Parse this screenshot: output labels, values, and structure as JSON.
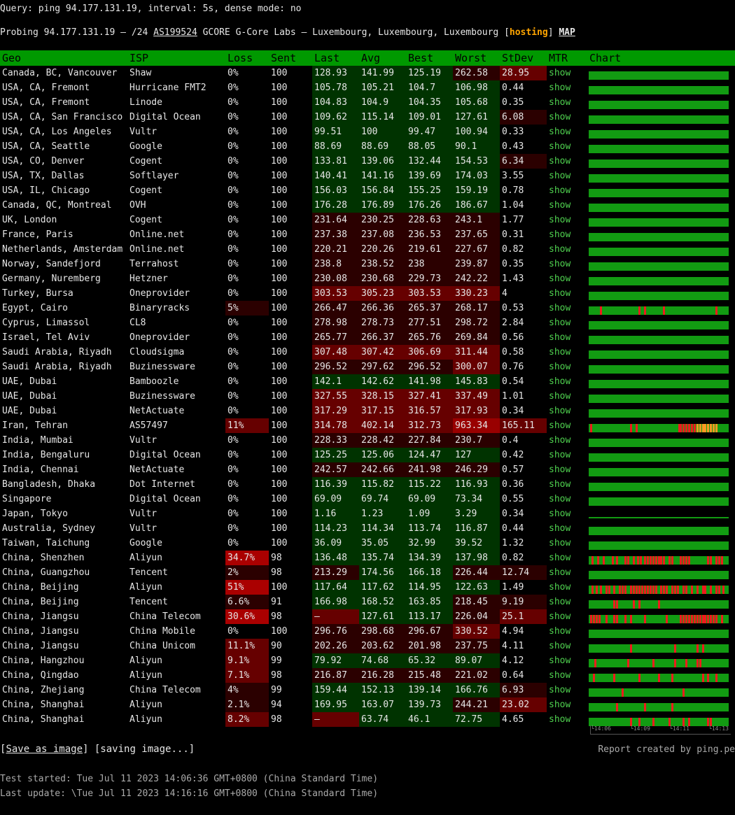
{
  "query": "Query: ping 94.177.131.19, interval: 5s, dense mode: no",
  "probe": {
    "prefix": "Probing 94.177.131.19 – /24 ",
    "asn": "AS199524",
    "desc": " GCORE G-Core Labs – Luxembourg, Luxembourg, Luxembourg [",
    "tag": "hosting",
    "tag_close": "] ",
    "map": "MAP"
  },
  "columns": [
    "Geo",
    "ISP",
    "Loss",
    "Sent",
    "Last",
    "Avg",
    "Best",
    "Worst",
    "StDev",
    "MTR",
    "Chart"
  ],
  "mtr_label": "show",
  "colors": {
    "header": "#009900",
    "good": "#003300",
    "mid": "#2b0000",
    "bad": "#660000",
    "worse": "#990000",
    "chart": "#129b12",
    "spike": "#ee1c1c"
  },
  "rows": [
    [
      "Canada, BC, Vancouver",
      "Shaw",
      "0%",
      "100",
      "128.93",
      "141.99",
      "125.19",
      "262.58",
      "28.95"
    ],
    [
      "USA, CA, Fremont",
      "Hurricane FMT2",
      "0%",
      "100",
      "105.78",
      "105.21",
      "104.7",
      "106.98",
      "0.44"
    ],
    [
      "USA, CA, Fremont",
      "Linode",
      "0%",
      "100",
      "104.83",
      "104.9",
      "104.35",
      "105.68",
      "0.35"
    ],
    [
      "USA, CA, San Francisco",
      "Digital Ocean",
      "0%",
      "100",
      "109.62",
      "115.14",
      "109.01",
      "127.61",
      "6.08"
    ],
    [
      "USA, CA, Los Angeles",
      "Vultr",
      "0%",
      "100",
      "99.51",
      "100",
      "99.47",
      "100.94",
      "0.33"
    ],
    [
      "USA, CA, Seattle",
      "Google",
      "0%",
      "100",
      "88.69",
      "88.69",
      "88.05",
      "90.1",
      "0.43"
    ],
    [
      "USA, CO, Denver",
      "Cogent",
      "0%",
      "100",
      "133.81",
      "139.06",
      "132.44",
      "154.53",
      "6.34"
    ],
    [
      "USA, TX, Dallas",
      "Softlayer",
      "0%",
      "100",
      "140.41",
      "141.16",
      "139.69",
      "174.03",
      "3.55"
    ],
    [
      "USA, IL, Chicago",
      "Cogent",
      "0%",
      "100",
      "156.03",
      "156.84",
      "155.25",
      "159.19",
      "0.78"
    ],
    [
      "Canada, QC, Montreal",
      "OVH",
      "0%",
      "100",
      "176.28",
      "176.89",
      "176.26",
      "186.67",
      "1.04"
    ],
    [
      "UK, London",
      "Cogent",
      "0%",
      "100",
      "231.64",
      "230.25",
      "228.63",
      "243.1",
      "1.77"
    ],
    [
      "France, Paris",
      "Online.net",
      "0%",
      "100",
      "237.38",
      "237.08",
      "236.53",
      "237.65",
      "0.31"
    ],
    [
      "Netherlands, Amsterdam",
      "Online.net",
      "0%",
      "100",
      "220.21",
      "220.26",
      "219.61",
      "227.67",
      "0.82"
    ],
    [
      "Norway, Sandefjord",
      "Terrahost",
      "0%",
      "100",
      "238.8",
      "238.52",
      "238",
      "239.87",
      "0.35"
    ],
    [
      "Germany, Nuremberg",
      "Hetzner",
      "0%",
      "100",
      "230.08",
      "230.68",
      "229.73",
      "242.22",
      "1.43"
    ],
    [
      "Turkey, Bursa",
      "Oneprovider",
      "0%",
      "100",
      "303.53",
      "305.23",
      "303.53",
      "330.23",
      "4"
    ],
    [
      "Egypt, Cairo",
      "Binaryracks",
      "5%",
      "100",
      "266.47",
      "266.36",
      "265.37",
      "268.17",
      "0.53"
    ],
    [
      "Cyprus, Limassol",
      "CL8",
      "0%",
      "100",
      "278.98",
      "278.73",
      "277.51",
      "298.72",
      "2.84"
    ],
    [
      "Israel, Tel Aviv",
      "Oneprovider",
      "0%",
      "100",
      "265.77",
      "266.37",
      "265.76",
      "269.84",
      "0.56"
    ],
    [
      "Saudi Arabia, Riyadh",
      "Cloudsigma",
      "0%",
      "100",
      "307.48",
      "307.42",
      "306.69",
      "311.44",
      "0.58"
    ],
    [
      "Saudi Arabia, Riyadh",
      "Buzinessware",
      "0%",
      "100",
      "296.52",
      "297.62",
      "296.52",
      "300.07",
      "0.76"
    ],
    [
      "UAE, Dubai",
      "Bamboozle",
      "0%",
      "100",
      "142.1",
      "142.62",
      "141.98",
      "145.83",
      "0.54"
    ],
    [
      "UAE, Dubai",
      "Buzinessware",
      "0%",
      "100",
      "327.55",
      "328.15",
      "327.41",
      "337.49",
      "1.01"
    ],
    [
      "UAE, Dubai",
      "NetActuate",
      "0%",
      "100",
      "317.29",
      "317.15",
      "316.57",
      "317.93",
      "0.34"
    ],
    [
      "Iran, Tehran",
      "AS57497",
      "11%",
      "100",
      "314.78",
      "402.14",
      "312.73",
      "963.34",
      "165.11"
    ],
    [
      "India, Mumbai",
      "Vultr",
      "0%",
      "100",
      "228.33",
      "228.42",
      "227.84",
      "230.7",
      "0.4"
    ],
    [
      "India, Bengaluru",
      "Digital Ocean",
      "0%",
      "100",
      "125.25",
      "125.06",
      "124.47",
      "127",
      "0.42"
    ],
    [
      "India, Chennai",
      "NetActuate",
      "0%",
      "100",
      "242.57",
      "242.66",
      "241.98",
      "246.29",
      "0.57"
    ],
    [
      "Bangladesh, Dhaka",
      "Dot Internet",
      "0%",
      "100",
      "116.39",
      "115.82",
      "115.22",
      "116.93",
      "0.36"
    ],
    [
      "Singapore",
      "Digital Ocean",
      "0%",
      "100",
      "69.09",
      "69.74",
      "69.09",
      "73.34",
      "0.55"
    ],
    [
      "Japan, Tokyo",
      "Vultr",
      "0%",
      "100",
      "1.16",
      "1.23",
      "1.09",
      "3.29",
      "0.34"
    ],
    [
      "Australia, Sydney",
      "Vultr",
      "0%",
      "100",
      "114.23",
      "114.34",
      "113.74",
      "116.87",
      "0.44"
    ],
    [
      "Taiwan, Taichung",
      "Google",
      "0%",
      "100",
      "36.09",
      "35.05",
      "32.99",
      "39.52",
      "1.32"
    ],
    [
      "China, Shenzhen",
      "Aliyun",
      "34.7%",
      "98",
      "136.48",
      "135.74",
      "134.39",
      "137.98",
      "0.82"
    ],
    [
      "China, Guangzhou",
      "Tencent",
      "2%",
      "98",
      "213.29",
      "174.56",
      "166.18",
      "226.44",
      "12.74"
    ],
    [
      "China, Beijing",
      "Aliyun",
      "51%",
      "100",
      "117.64",
      "117.62",
      "114.95",
      "122.63",
      "1.49"
    ],
    [
      "China, Beijing",
      "Tencent",
      "6.6%",
      "91",
      "166.98",
      "168.52",
      "163.85",
      "218.45",
      "9.19"
    ],
    [
      "China, Jiangsu",
      "China Telecom",
      "30.6%",
      "98",
      "–",
      "127.61",
      "113.17",
      "226.04",
      "25.1"
    ],
    [
      "China, Jiangsu",
      "China Mobile",
      "0%",
      "100",
      "296.76",
      "298.68",
      "296.67",
      "330.52",
      "4.94"
    ],
    [
      "China, Jiangsu",
      "China Unicom",
      "11.1%",
      "90",
      "202.26",
      "203.62",
      "201.98",
      "237.75",
      "4.11"
    ],
    [
      "China, Hangzhou",
      "Aliyun",
      "9.1%",
      "99",
      "79.92",
      "74.68",
      "65.32",
      "89.07",
      "4.12"
    ],
    [
      "China, Qingdao",
      "Aliyun",
      "7.1%",
      "98",
      "216.87",
      "216.28",
      "215.48",
      "221.02",
      "0.64"
    ],
    [
      "China, Zhejiang",
      "China Telecom",
      "4%",
      "99",
      "159.44",
      "152.13",
      "139.14",
      "166.76",
      "6.93"
    ],
    [
      "China, Shanghai",
      "Aliyun",
      "2.1%",
      "94",
      "169.95",
      "163.07",
      "139.73",
      "244.21",
      "23.02"
    ],
    [
      "China, Shanghai",
      "Aliyun",
      "8.2%",
      "98",
      "–",
      "63.74",
      "46.1",
      "72.75",
      "4.65"
    ]
  ],
  "chart_spikes": {
    "16": [
      0.08,
      0.36,
      0.4,
      0.54,
      0.92
    ],
    "24": [
      0.01,
      0.3,
      0.34,
      0.65,
      0.66,
      0.68,
      0.7,
      0.72,
      0.74,
      0.76,
      0.78,
      0.8,
      0.82,
      0.84,
      0.86,
      0.88,
      0.9,
      0.92
    ],
    "33": [
      0.02,
      0.06,
      0.1,
      0.17,
      0.2,
      0.26,
      0.28,
      0.32,
      0.35,
      0.37,
      0.4,
      0.42,
      0.44,
      0.46,
      0.48,
      0.5,
      0.52,
      0.54,
      0.58,
      0.6,
      0.66,
      0.68,
      0.7,
      0.72,
      0.86,
      0.88,
      0.92,
      0.94,
      0.96
    ],
    "35": [
      0.02,
      0.05,
      0.08,
      0.12,
      0.14,
      0.18,
      0.22,
      0.24,
      0.26,
      0.3,
      0.32,
      0.34,
      0.36,
      0.38,
      0.4,
      0.42,
      0.44,
      0.46,
      0.48,
      0.52,
      0.54,
      0.56,
      0.6,
      0.62,
      0.64,
      0.68,
      0.7,
      0.74,
      0.78,
      0.82,
      0.84,
      0.88,
      0.92,
      0.94,
      0.97
    ],
    "36": [
      0.18,
      0.2,
      0.32,
      0.36,
      0.5
    ],
    "37": [
      0.01,
      0.03,
      0.05,
      0.07,
      0.12,
      0.18,
      0.2,
      0.26,
      0.3,
      0.4,
      0.56,
      0.66,
      0.68,
      0.7,
      0.72,
      0.74,
      0.76,
      0.78,
      0.8,
      0.82,
      0.84,
      0.86,
      0.88,
      0.9,
      0.92,
      0.96
    ],
    "39": [
      0.3,
      0.62,
      0.78,
      0.82
    ],
    "40": [
      0.04,
      0.28,
      0.46,
      0.62,
      0.7,
      0.78,
      0.8
    ],
    "41": [
      0.03,
      0.18,
      0.36,
      0.5,
      0.6,
      0.82,
      0.86,
      0.92
    ],
    "42": [
      0.24,
      0.68
    ],
    "43": [
      0.2,
      0.4,
      0.6
    ],
    "44": [
      0.3,
      0.36,
      0.46,
      0.58,
      0.68,
      0.72,
      0.86,
      0.88
    ]
  },
  "chart_ticks": [
    "14:06",
    "14:09",
    "14:11",
    "14:13"
  ],
  "save_label": "Save as image",
  "saving_label": " [saving image...]",
  "report": "Report created by ping.pe",
  "started": "Test started: Tue Jul 11 2023 14:06:36 GMT+0800 (China Standard Time)",
  "updated": "Last update: \\Tue Jul 11 2023 14:16:16 GMT+0800 (China Standard Time)"
}
